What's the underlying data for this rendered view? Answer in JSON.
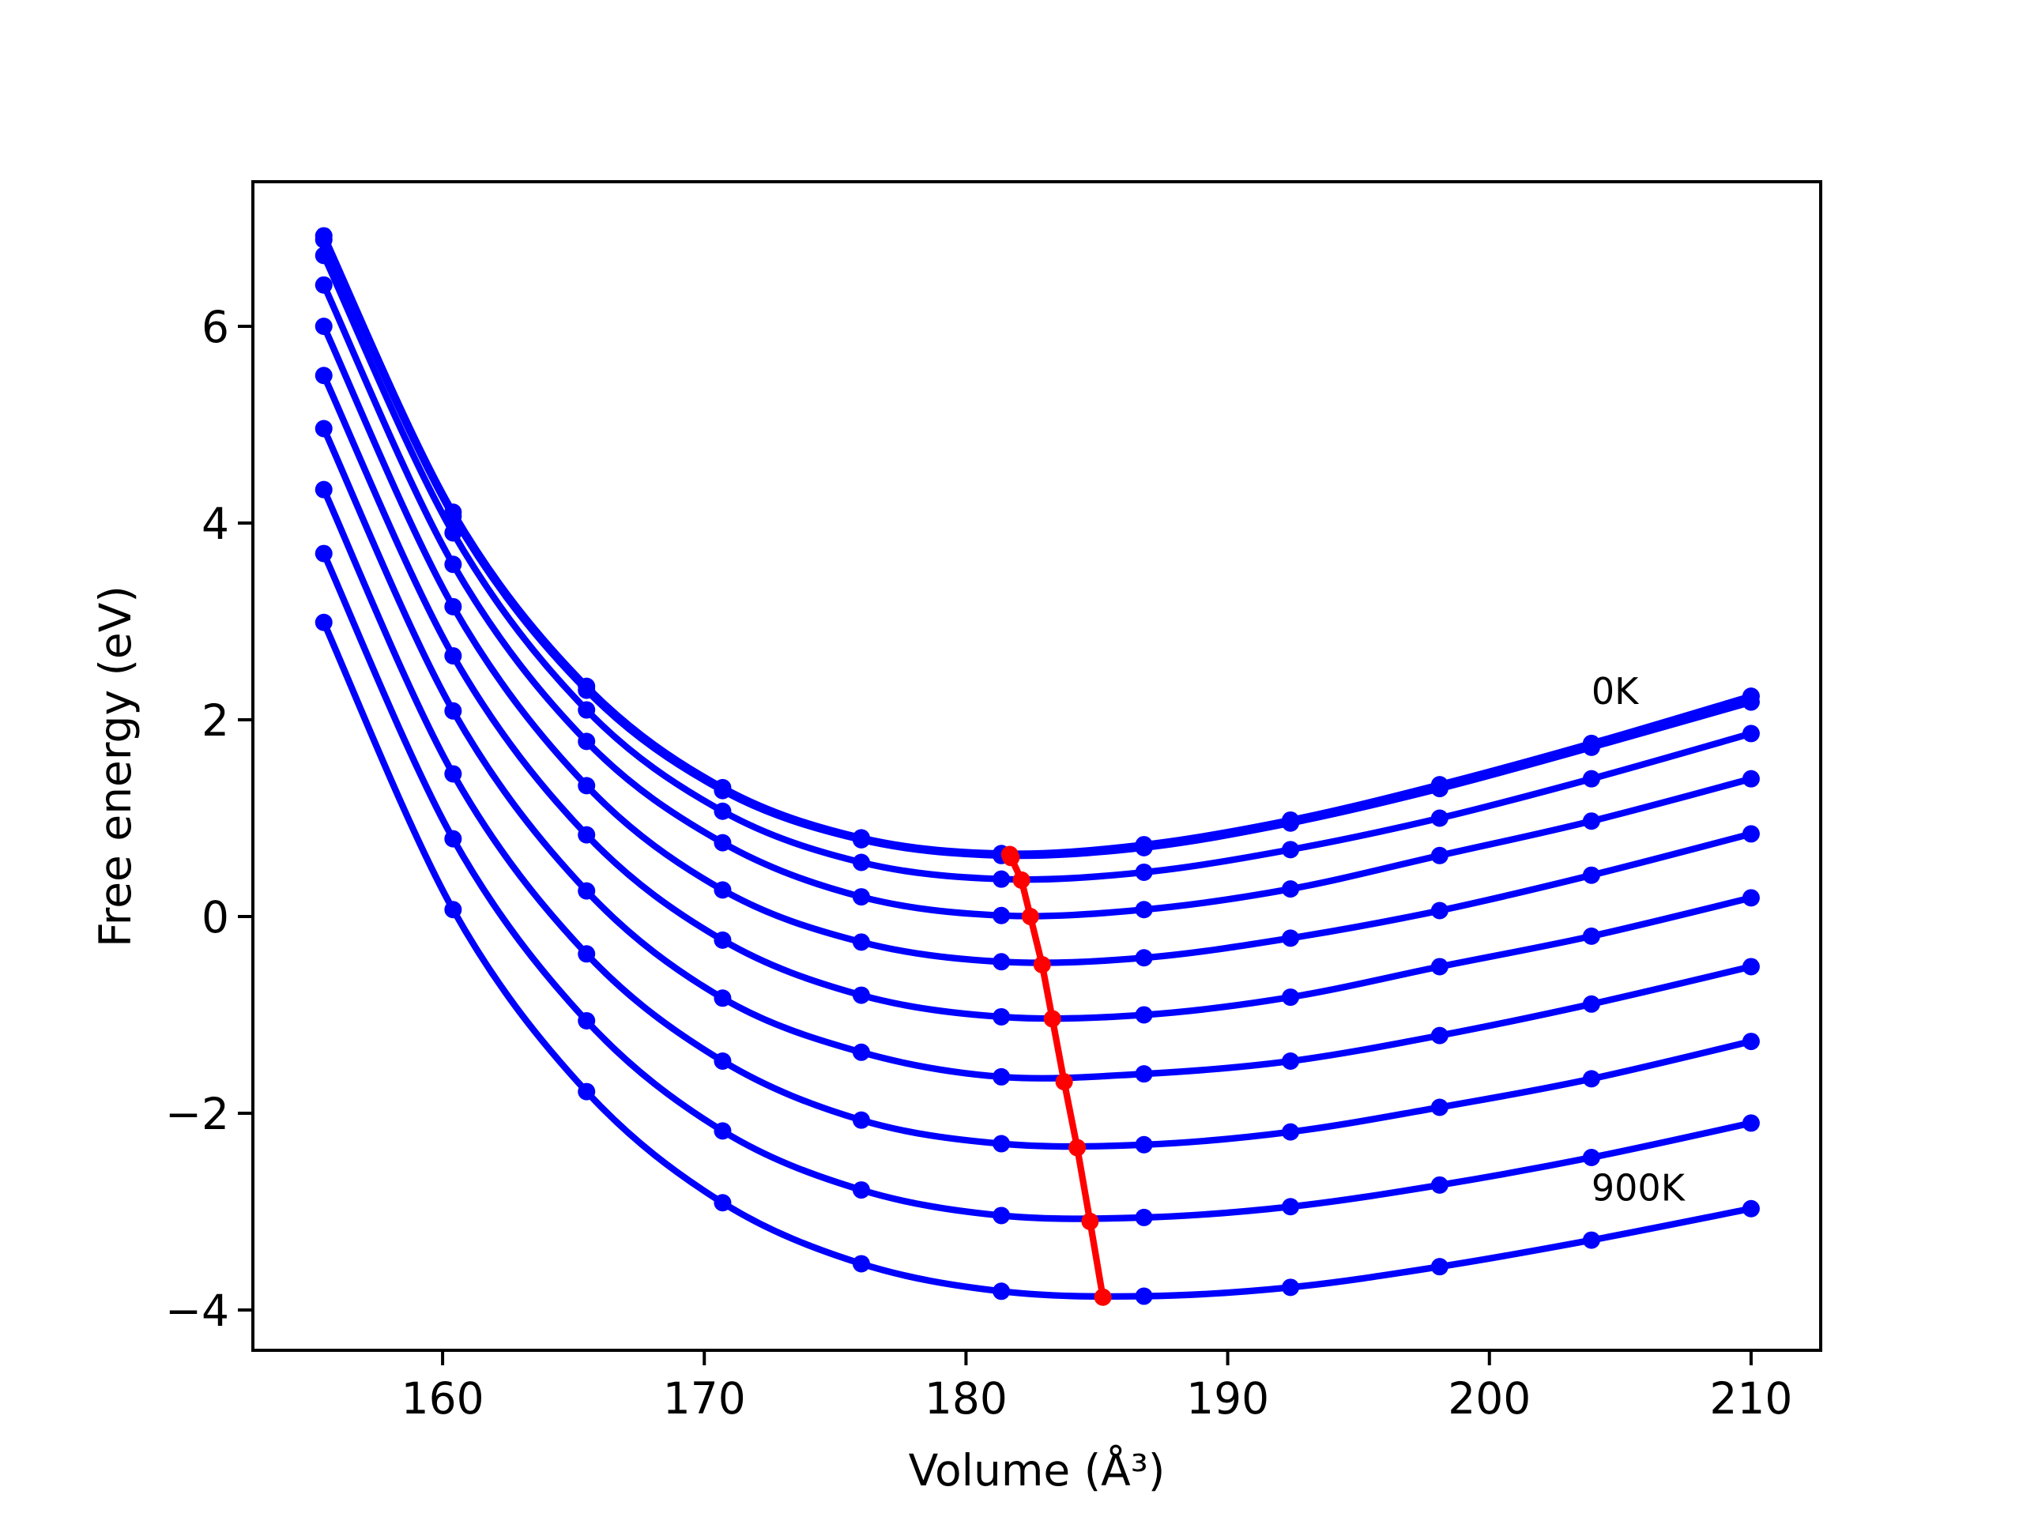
{
  "chart_data": {
    "type": "line",
    "xlabel": "Volume (Å³)",
    "ylabel": "Free energy (eV)",
    "x": [
      155.46,
      160.4,
      165.5,
      170.7,
      176.0,
      181.35,
      186.8,
      192.4,
      198.1,
      203.9,
      210.0
    ],
    "series": [
      {
        "color": "#0000ff",
        "smooth": true,
        "values": [
          6.92,
          4.11,
          2.34,
          1.31,
          0.8,
          0.64,
          0.73,
          0.98,
          1.34,
          1.76,
          2.24
        ]
      },
      {
        "color": "#0000ff",
        "smooth": true,
        "values": [
          6.88,
          4.07,
          2.3,
          1.28,
          0.78,
          0.62,
          0.7,
          0.95,
          1.3,
          1.72,
          2.18
        ]
      },
      {
        "color": "#0000ff",
        "smooth": true,
        "values": [
          6.72,
          3.9,
          2.1,
          1.07,
          0.55,
          0.38,
          0.45,
          0.68,
          1.0,
          1.4,
          1.86
        ]
      },
      {
        "color": "#0000ff",
        "smooth": true,
        "values": [
          6.42,
          3.58,
          1.78,
          0.75,
          0.2,
          0.01,
          0.07,
          0.28,
          0.62,
          0.97,
          1.4
        ]
      },
      {
        "color": "#0000ff",
        "smooth": true,
        "values": [
          6.0,
          3.15,
          1.33,
          0.27,
          -0.26,
          -0.46,
          -0.42,
          -0.22,
          0.06,
          0.42,
          0.84
        ]
      },
      {
        "color": "#0000ff",
        "smooth": true,
        "values": [
          5.5,
          2.65,
          0.83,
          -0.24,
          -0.8,
          -1.02,
          -1.0,
          -0.82,
          -0.51,
          -0.2,
          0.19
        ]
      },
      {
        "color": "#0000ff",
        "smooth": true,
        "values": [
          4.96,
          2.09,
          0.26,
          -0.83,
          -1.38,
          -1.63,
          -1.6,
          -1.47,
          -1.21,
          -0.89,
          -0.51
        ]
      },
      {
        "color": "#0000ff",
        "smooth": true,
        "values": [
          4.34,
          1.45,
          -0.38,
          -1.47,
          -2.07,
          -2.31,
          -2.32,
          -2.19,
          -1.94,
          -1.65,
          -1.27
        ]
      },
      {
        "color": "#0000ff",
        "smooth": true,
        "values": [
          3.69,
          0.79,
          -1.06,
          -2.18,
          -2.78,
          -3.04,
          -3.06,
          -2.95,
          -2.73,
          -2.45,
          -2.1
        ]
      },
      {
        "color": "#0000ff",
        "smooth": true,
        "values": [
          2.99,
          0.07,
          -1.78,
          -2.91,
          -3.53,
          -3.81,
          -3.86,
          -3.77,
          -3.56,
          -3.29,
          -2.97
        ]
      },
      {
        "color": "#ff0000",
        "smooth": false,
        "x": [
          181.67,
          181.72,
          182.12,
          182.46,
          182.91,
          183.3,
          183.75,
          184.25,
          184.74,
          185.23
        ],
        "values": [
          0.63,
          0.6,
          0.37,
          0.0,
          -0.49,
          -1.04,
          -1.68,
          -2.35,
          -3.1,
          -3.87
        ]
      }
    ],
    "annotations": [
      {
        "text": "0K",
        "series": 0
      },
      {
        "text": "900K",
        "series": 9
      }
    ],
    "xlim": [
      152.75,
      212.66
    ],
    "ylim": [
      -4.41,
      7.47
    ],
    "xticks": [
      160,
      170,
      180,
      190,
      200,
      210
    ],
    "yticks": [
      {
        "value": -4,
        "label": "−4"
      },
      {
        "value": -2,
        "label": "−2"
      },
      0,
      2,
      4,
      6
    ],
    "grid": false
  }
}
